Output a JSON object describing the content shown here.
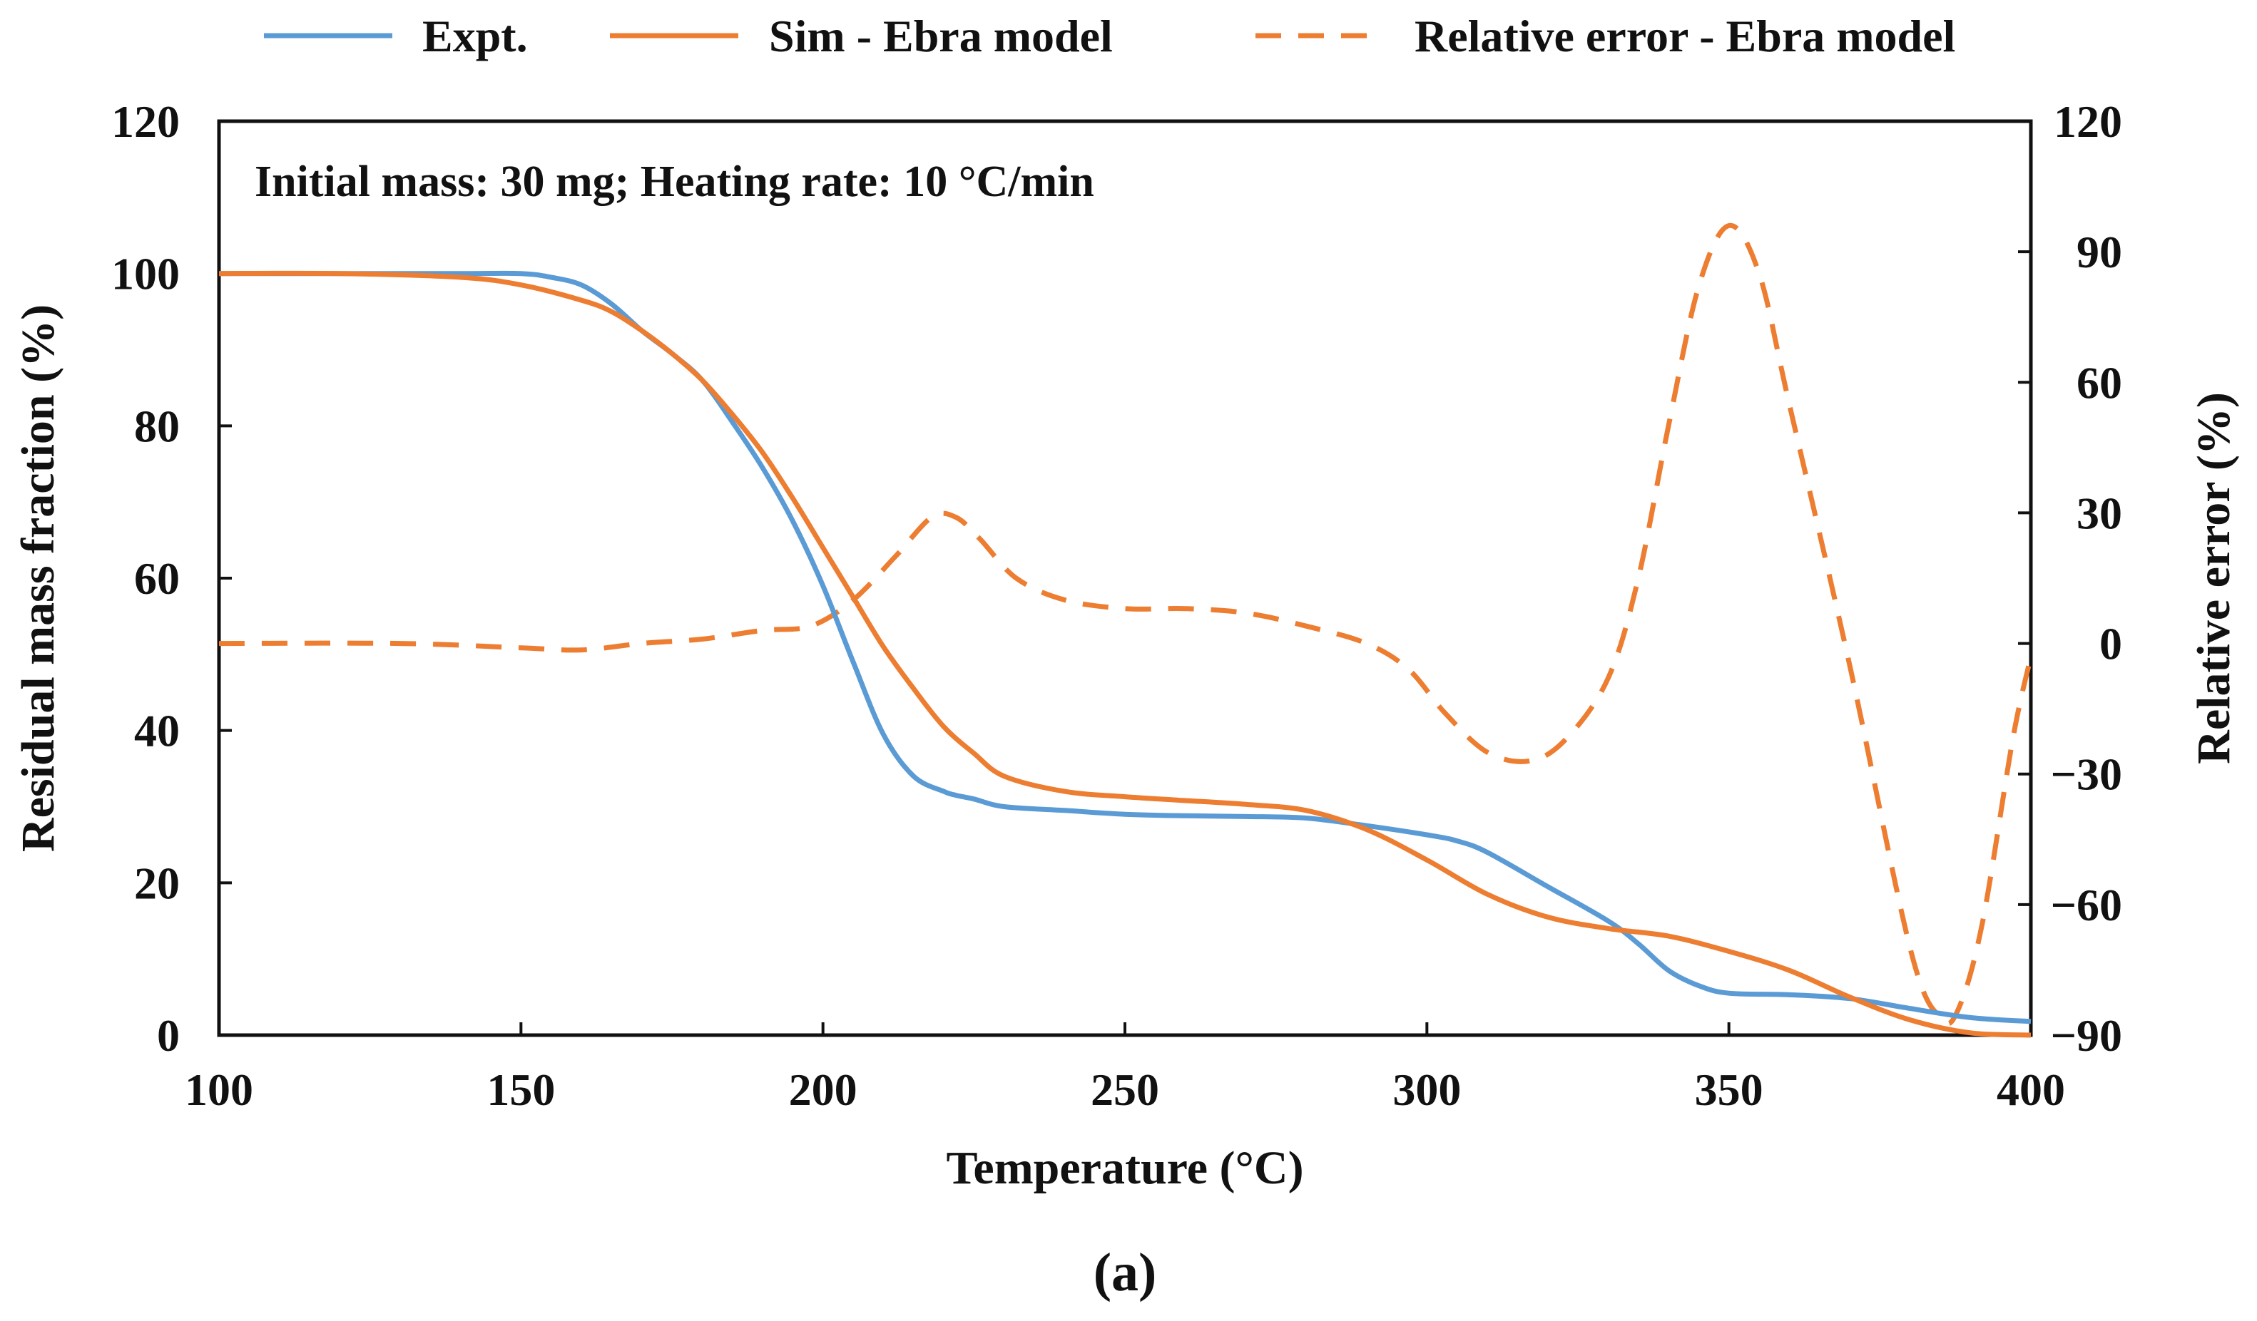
{
  "chart_data": {
    "type": "line",
    "title": "",
    "annotation": "Initial mass: 30 mg; Heating rate: 10 °C/min",
    "caption": "(a)",
    "xlabel": "Temperature (°C)",
    "ylabel": "Residual mass fraction (%)",
    "y2label": "Relative error (%)",
    "xlim": [
      100,
      400
    ],
    "ylim": [
      0,
      120
    ],
    "y2lim": [
      -90,
      120
    ],
    "xticks": [
      100,
      150,
      200,
      250,
      300,
      350,
      400
    ],
    "yticks": [
      0,
      20,
      40,
      60,
      80,
      100,
      120
    ],
    "y2ticks": [
      "120",
      "90",
      "60",
      "30",
      "0",
      "−30",
      "−60",
      "−90"
    ],
    "y2tick_values": [
      120,
      90,
      60,
      30,
      0,
      -30,
      -60,
      -90
    ],
    "grid": false,
    "legend_position": "top",
    "colors": {
      "expt": "#5b9bd5",
      "sim": "#ed7d31",
      "error": "#ed7d31",
      "axis": "#111111"
    },
    "series": [
      {
        "name": "Expt.",
        "axis": "left",
        "style": "solid",
        "x": [
          100,
          120,
          140,
          150,
          155,
          160,
          165,
          170,
          175,
          180,
          185,
          190,
          195,
          200,
          205,
          210,
          215,
          220,
          222,
          225,
          230,
          240,
          250,
          260,
          270,
          280,
          290,
          300,
          305,
          310,
          320,
          330,
          335,
          340,
          345,
          350,
          360,
          370,
          380,
          390,
          400
        ],
        "values": [
          100,
          100,
          100,
          100,
          99.5,
          98.5,
          96,
          92.5,
          89.5,
          86,
          80.5,
          74.5,
          67.5,
          59,
          49,
          39.5,
          34,
          32,
          31.5,
          31,
          30,
          29.5,
          29,
          28.8,
          28.7,
          28.5,
          27.5,
          26.3,
          25.5,
          24,
          19.5,
          15,
          12,
          8.5,
          6.5,
          5.5,
          5.3,
          4.8,
          3.5,
          2.3,
          1.8
        ]
      },
      {
        "name": "Sim - Ebra model",
        "axis": "left",
        "style": "solid",
        "x": [
          100,
          120,
          140,
          150,
          160,
          165,
          170,
          175,
          180,
          185,
          190,
          195,
          200,
          205,
          210,
          215,
          220,
          225,
          230,
          240,
          250,
          260,
          270,
          280,
          290,
          300,
          310,
          320,
          330,
          340,
          350,
          360,
          370,
          380,
          390,
          400
        ],
        "values": [
          100,
          100,
          99.5,
          98.5,
          96.5,
          95,
          92.5,
          89.5,
          86,
          81.5,
          76.5,
          70.5,
          64,
          57.5,
          51,
          45.5,
          40.5,
          37,
          34,
          32,
          31.3,
          30.8,
          30.3,
          29.5,
          27,
          23,
          18.5,
          15.5,
          14,
          13,
          11,
          8.5,
          5,
          2,
          0.3,
          0
        ]
      },
      {
        "name": "Relative error - Ebra model",
        "axis": "right",
        "style": "dashed",
        "x": [
          100,
          130,
          150,
          160,
          170,
          180,
          190,
          198,
          205,
          212,
          218,
          222,
          226,
          232,
          240,
          250,
          260,
          270,
          280,
          290,
          297,
          303,
          310,
          317,
          323,
          330,
          335,
          340,
          345,
          350,
          355,
          360,
          370,
          380,
          385,
          388,
          392,
          397,
          400
        ],
        "values": [
          0,
          0,
          -1,
          -1.5,
          0,
          1,
          3,
          4,
          10,
          20,
          29,
          29,
          24,
          15,
          10,
          8,
          8,
          7,
          4,
          0,
          -6,
          -16,
          -25,
          -27,
          -22,
          -8,
          15,
          50,
          82,
          96,
          85,
          55,
          -5,
          -70,
          -86,
          -84,
          -64,
          -22,
          -3
        ]
      }
    ]
  }
}
